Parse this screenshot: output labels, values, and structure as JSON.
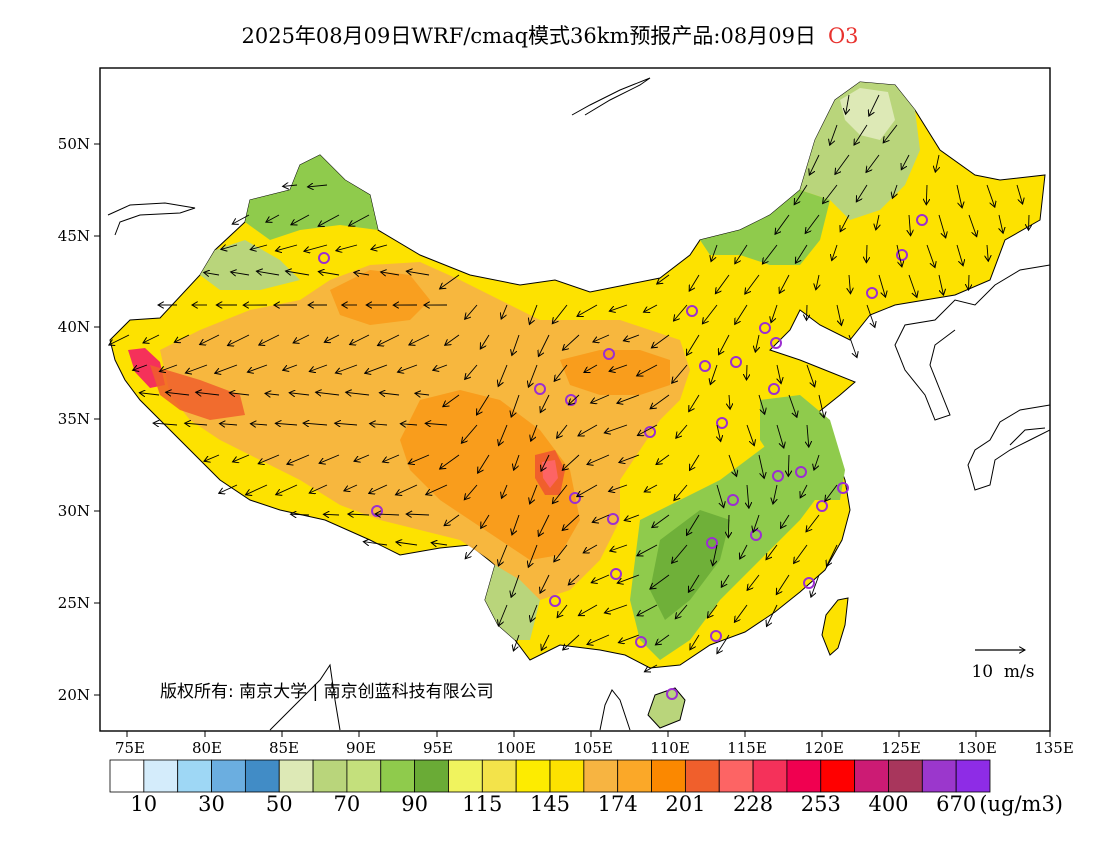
{
  "title": {
    "text": "2025年08月09日WRF/cmaq模式36km预报产品:08月09日",
    "species": "O3"
  },
  "copyright": "版权所有: 南京大学 | 南京创蓝科技有限公司",
  "wind_reference": {
    "label": "10  m/s"
  },
  "axes": {
    "lon_ticks": [
      "75E",
      "80E",
      "85E",
      "90E",
      "95E",
      "100E",
      "105E",
      "110E",
      "115E",
      "120E",
      "125E",
      "130E",
      "135E"
    ],
    "lat_ticks": [
      "20N",
      "25N",
      "30N",
      "35N",
      "40N",
      "45N",
      "50N"
    ]
  },
  "colorbar": {
    "unit": "(ug/m3)",
    "labels": [
      "10",
      "30",
      "50",
      "70",
      "90",
      "115",
      "145",
      "174",
      "201",
      "228",
      "253",
      "400",
      "670"
    ],
    "colors": [
      "#ffffff",
      "#d4ecfb",
      "#9ed7f5",
      "#6baee0",
      "#418cc6",
      "#dde9b6",
      "#b9d57b",
      "#c4e07c",
      "#8fcb4c",
      "#6aab36",
      "#f0f35e",
      "#f3e34a",
      "#fdec00",
      "#fde200",
      "#f7b441",
      "#fba828",
      "#fb8800",
      "#f05f2c",
      "#fd6464",
      "#f5315a",
      "#f00050",
      "#ff0000",
      "#cc1b74",
      "#a8365c",
      "#9b37cc",
      "#8e2ce6"
    ]
  },
  "stations_label": "monitoring-stations"
}
